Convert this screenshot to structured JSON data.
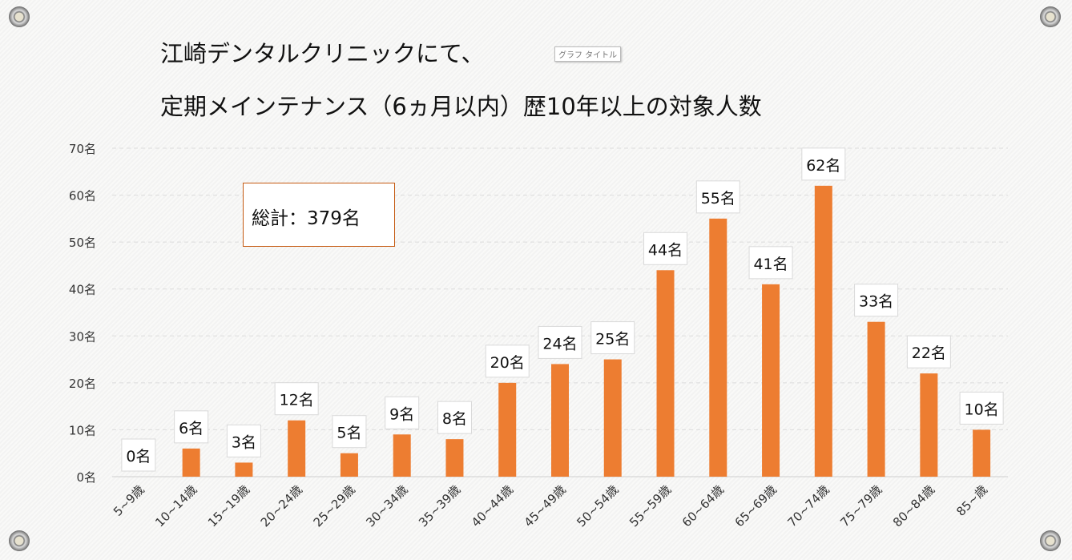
{
  "title_line1": "江崎デンタルクリニックにて、",
  "title_line2": "定期メインテナンス（6ヵ月以内）歴10年以上の対象人数",
  "title_placeholder": "グラフ タイトル",
  "total_box": "総計：379名",
  "chart_data": {
    "type": "bar",
    "categories": [
      "5~9歳",
      "10~14歳",
      "15~19歳",
      "20~24歳",
      "25~29歳",
      "30~34歳",
      "35~39歳",
      "40~44歳",
      "45~49歳",
      "50~54歳",
      "55~59歳",
      "60~64歳",
      "65~69歳",
      "70~74歳",
      "75~79歳",
      "80~84歳",
      "85~歳"
    ],
    "values": [
      0,
      6,
      3,
      12,
      5,
      9,
      8,
      20,
      24,
      25,
      44,
      55,
      41,
      62,
      33,
      22,
      10
    ],
    "data_labels": [
      "0名",
      "6名",
      "3名",
      "12名",
      "5名",
      "9名",
      "8名",
      "20名",
      "24名",
      "25名",
      "44名",
      "55名",
      "41名",
      "62名",
      "33名",
      "22名",
      "10名"
    ],
    "yticks": [
      "0名",
      "10名",
      "20名",
      "30名",
      "40名",
      "50名",
      "60名",
      "70名"
    ],
    "ylim": [
      0,
      70
    ],
    "grid": true,
    "bar_color": "#ed7d31"
  }
}
